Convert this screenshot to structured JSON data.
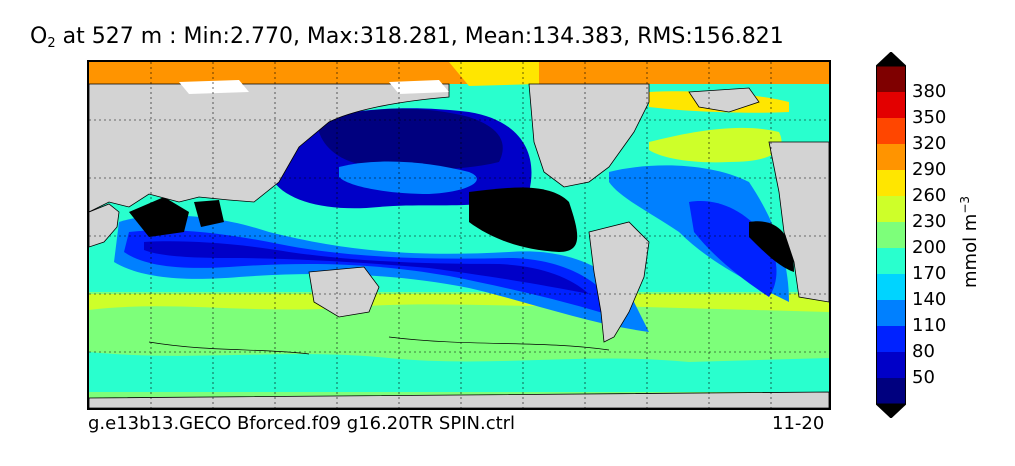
{
  "title": {
    "species": "O",
    "subscript": "2",
    "text": " at 527 m : Min:2.770, Max:318.281, Mean:134.383, RMS:156.821"
  },
  "footer": {
    "run_name": "g.e13b13.GECO Bforced.f09 g16.20TR SPIN.ctrl",
    "period": "11-20"
  },
  "colorbar": {
    "units": "mmol m",
    "units_exponent": "−3",
    "tick_labels": [
      "50",
      "80",
      "110",
      "140",
      "170",
      "200",
      "230",
      "260",
      "290",
      "320",
      "350",
      "380"
    ],
    "colors": [
      "#00007f",
      "#0000c8",
      "#0022ff",
      "#0080ff",
      "#00d4ff",
      "#29ffce",
      "#7dff7a",
      "#ceff29",
      "#ffe600",
      "#ff9400",
      "#ff4600",
      "#e30000",
      "#7f0000"
    ],
    "below_color": "#00007f",
    "above_color": "#000000"
  },
  "map": {
    "land_color": "#d3d3d3",
    "missing_color": "#000000",
    "ice_color": "#ffffff",
    "grid": true
  }
}
